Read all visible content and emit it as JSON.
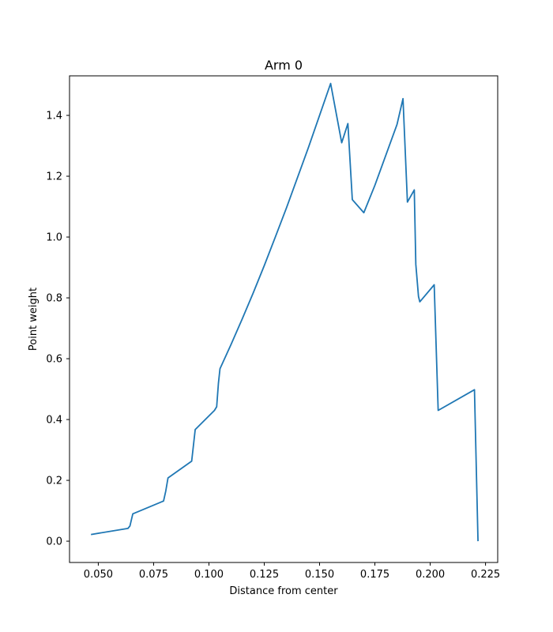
{
  "chart_data": {
    "type": "line",
    "title": "Arm 0",
    "xlabel": "Distance from center",
    "ylabel": "Point weight",
    "xlim": [
      0.037,
      0.2305
    ],
    "ylim": [
      -0.07,
      1.53
    ],
    "xticks": [
      0.05,
      0.075,
      0.1,
      0.125,
      0.15,
      0.175,
      0.2,
      0.225
    ],
    "xtick_labels": [
      "0.050",
      "0.075",
      "0.100",
      "0.125",
      "0.150",
      "0.175",
      "0.200",
      "0.225"
    ],
    "yticks": [
      0.0,
      0.2,
      0.4,
      0.6,
      0.8,
      1.0,
      1.2,
      1.4
    ],
    "ytick_labels": [
      "0.0",
      "0.2",
      "0.4",
      "0.6",
      "0.8",
      "1.0",
      "1.2",
      "1.4"
    ],
    "grid": false,
    "color": "#1f77b4",
    "series": [
      {
        "x": [
          0.0467,
          0.0634,
          0.0643,
          0.0656,
          0.0795,
          0.0805,
          0.0815,
          0.0922,
          0.0938,
          0.1025,
          0.1035,
          0.1043,
          0.105,
          0.11,
          0.115,
          0.12,
          0.125,
          0.13,
          0.135,
          0.14,
          0.145,
          0.15,
          0.155,
          0.16,
          0.1628,
          0.1648,
          0.17,
          0.175,
          0.18,
          0.185,
          0.1877,
          0.1897,
          0.1928,
          0.1935,
          0.1947,
          0.1953,
          0.2018,
          0.2036,
          0.22,
          0.2216
        ],
        "y": [
          0.022,
          0.042,
          0.05,
          0.09,
          0.132,
          0.165,
          0.208,
          0.263,
          0.367,
          0.43,
          0.442,
          0.52,
          0.567,
          0.647,
          0.73,
          0.816,
          0.906,
          1.0,
          1.095,
          1.195,
          1.295,
          1.4,
          1.505,
          1.31,
          1.373,
          1.123,
          1.08,
          1.17,
          1.27,
          1.37,
          1.455,
          1.115,
          1.155,
          0.91,
          0.805,
          0.787,
          0.843,
          0.43,
          0.498,
          0.0
        ]
      }
    ]
  }
}
